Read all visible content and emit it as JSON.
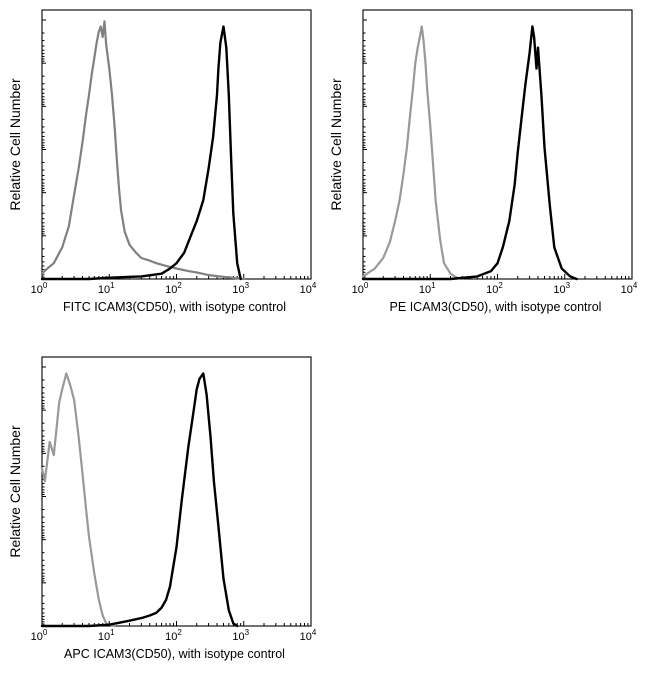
{
  "chart_data": [
    {
      "type": "line",
      "title": "",
      "xlabel": "FITC  ICAM3(CD50), with isotype control",
      "ylabel": "Relative Cell Number",
      "xscale": "log",
      "xlim": [
        1,
        10000
      ],
      "ylim": [
        0,
        100
      ],
      "xticks": [
        {
          "base": "10",
          "exp": "0"
        },
        {
          "base": "10",
          "exp": "1"
        },
        {
          "base": "10",
          "exp": "2"
        },
        {
          "base": "10",
          "exp": "3"
        },
        {
          "base": "10",
          "exp": "4"
        }
      ],
      "grid": false,
      "legend": "none",
      "series": [
        {
          "color": "#808080",
          "x": [
            1,
            1.2,
            1.5,
            2,
            2.5,
            3,
            3.5,
            4,
            4.5,
            5,
            5.5,
            6,
            6.5,
            7,
            7.5,
            8,
            8.5,
            9,
            10,
            11,
            12,
            13,
            14,
            15,
            17,
            20,
            25,
            30,
            40,
            50,
            70,
            100,
            150,
            200,
            300,
            500,
            700,
            1000
          ],
          "y": [
            2,
            4,
            6,
            12,
            20,
            32,
            42,
            52,
            62,
            70,
            78,
            84,
            90,
            94,
            96,
            92,
            98,
            89,
            80,
            70,
            58,
            45,
            34,
            26,
            18,
            13,
            10,
            8,
            7,
            6,
            5,
            4,
            3,
            2.5,
            1.5,
            0.8,
            0.4,
            0
          ]
        },
        {
          "color": "#000000",
          "x": [
            1,
            5,
            10,
            30,
            60,
            80,
            100,
            130,
            150,
            200,
            250,
            300,
            350,
            400,
            420,
            450,
            500,
            550,
            600,
            650,
            700,
            800,
            900
          ],
          "y": [
            0,
            0,
            0.5,
            1,
            2,
            4,
            6,
            10,
            14,
            22,
            30,
            42,
            54,
            70,
            80,
            90,
            96,
            88,
            70,
            45,
            25,
            6,
            0
          ]
        }
      ]
    },
    {
      "type": "line",
      "title": "",
      "xlabel": "PE ICAM3(CD50),  with isotype control",
      "ylabel": "Relative Cell Number",
      "xscale": "log",
      "xlim": [
        1,
        10000
      ],
      "ylim": [
        0,
        100
      ],
      "xticks": [
        {
          "base": "10",
          "exp": "0"
        },
        {
          "base": "10",
          "exp": "1"
        },
        {
          "base": "10",
          "exp": "2"
        },
        {
          "base": "10",
          "exp": "3"
        },
        {
          "base": "10",
          "exp": "4"
        }
      ],
      "grid": false,
      "legend": "none",
      "series": [
        {
          "color": "#999999",
          "x": [
            1,
            1.5,
            2,
            2.5,
            3,
            3.5,
            4,
            4.5,
            5,
            5.5,
            6,
            6.5,
            7,
            7.5,
            8,
            8.5,
            9,
            10,
            11,
            12,
            14,
            16,
            20,
            25,
            30
          ],
          "y": [
            1,
            4,
            8,
            14,
            22,
            30,
            40,
            50,
            62,
            72,
            82,
            88,
            92,
            96,
            90,
            82,
            72,
            58,
            44,
            30,
            15,
            6,
            2,
            0.5,
            0
          ]
        },
        {
          "color": "#000000",
          "x": [
            1,
            20,
            50,
            80,
            100,
            120,
            150,
            180,
            200,
            230,
            260,
            300,
            330,
            350,
            380,
            400,
            450,
            500,
            600,
            700,
            900,
            1200,
            1500
          ],
          "y": [
            0,
            0,
            1,
            3,
            6,
            12,
            22,
            36,
            48,
            62,
            74,
            86,
            96,
            92,
            80,
            88,
            70,
            50,
            28,
            12,
            4,
            1,
            0
          ]
        }
      ]
    },
    {
      "type": "line",
      "title": "",
      "xlabel": "APC ICAM3(CD50), with isotype control",
      "ylabel": "Relative Cell Number",
      "xscale": "log",
      "xlim": [
        1,
        10000
      ],
      "ylim": [
        0,
        100
      ],
      "xticks": [
        {
          "base": "10",
          "exp": "0"
        },
        {
          "base": "10",
          "exp": "1"
        },
        {
          "base": "10",
          "exp": "2"
        },
        {
          "base": "10",
          "exp": "3"
        },
        {
          "base": "10",
          "exp": "4"
        }
      ],
      "grid": false,
      "legend": "none",
      "series": [
        {
          "color": "#999999",
          "x": [
            1,
            1.1,
            1.3,
            1.5,
            1.8,
            2,
            2.3,
            2.6,
            3,
            3.5,
            4,
            4.5,
            5,
            6,
            7,
            8,
            9,
            10,
            12
          ],
          "y": [
            60,
            55,
            70,
            65,
            85,
            90,
            96,
            92,
            86,
            72,
            58,
            45,
            34,
            20,
            10,
            4,
            1,
            0.5,
            0
          ]
        },
        {
          "color": "#000000",
          "x": [
            1,
            5,
            10,
            20,
            30,
            40,
            50,
            60,
            70,
            80,
            100,
            120,
            150,
            180,
            200,
            220,
            250,
            280,
            320,
            360,
            420,
            500,
            600,
            700,
            800
          ],
          "y": [
            0,
            0,
            0.5,
            2,
            3,
            4,
            5,
            7,
            10,
            15,
            30,
            48,
            68,
            82,
            90,
            94,
            96,
            88,
            72,
            55,
            38,
            18,
            6,
            1,
            0
          ]
        }
      ]
    }
  ]
}
